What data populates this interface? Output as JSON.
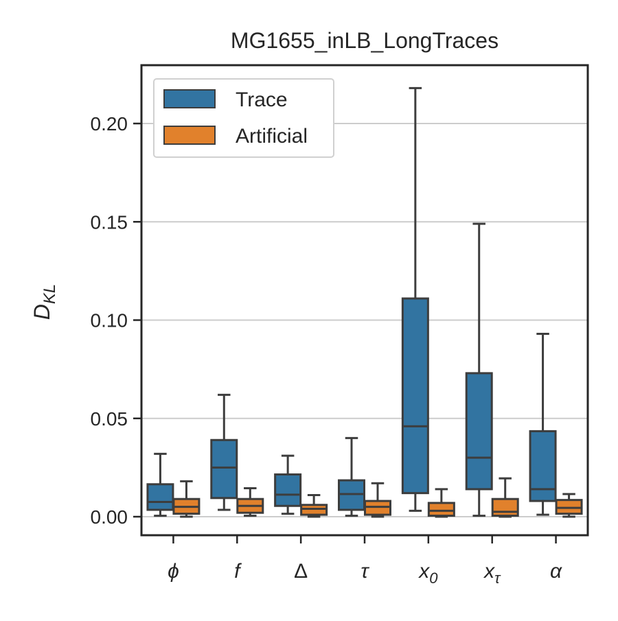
{
  "chart_data": {
    "type": "box",
    "title": "MG1655_inLB_LongTraces",
    "ylabel_main": "D",
    "ylabel_sub": "KL",
    "xlabel": "",
    "ylim": [
      -0.01,
      0.228
    ],
    "yticks": [
      0.0,
      0.05,
      0.1,
      0.15,
      0.2
    ],
    "ytick_labels": [
      "0.00",
      "0.05",
      "0.10",
      "0.15",
      "0.20"
    ],
    "grid": "horizontal",
    "legend_position": "upper-left",
    "categories": [
      {
        "main": "ϕ",
        "sub": "",
        "italic": true
      },
      {
        "main": "f",
        "sub": "",
        "italic": true
      },
      {
        "main": "Δ",
        "sub": "",
        "italic": false
      },
      {
        "main": "τ",
        "sub": "",
        "italic": true
      },
      {
        "main": "x",
        "sub": "0",
        "italic": true
      },
      {
        "main": "x",
        "sub": "τ",
        "italic": true
      },
      {
        "main": "α",
        "sub": "",
        "italic": true
      }
    ],
    "series": [
      {
        "name": "Trace",
        "color": "#3274a1",
        "boxes": [
          {
            "whislo": 0.0005,
            "q1": 0.0035,
            "med": 0.0075,
            "q3": 0.0165,
            "whishi": 0.032
          },
          {
            "whislo": 0.0035,
            "q1": 0.0095,
            "med": 0.025,
            "q3": 0.039,
            "whishi": 0.062
          },
          {
            "whislo": 0.0015,
            "q1": 0.0055,
            "med": 0.0112,
            "q3": 0.0215,
            "whishi": 0.031
          },
          {
            "whislo": 0.0005,
            "q1": 0.0035,
            "med": 0.0115,
            "q3": 0.0185,
            "whishi": 0.04
          },
          {
            "whislo": 0.003,
            "q1": 0.012,
            "med": 0.046,
            "q3": 0.111,
            "whishi": 0.218
          },
          {
            "whislo": 0.0005,
            "q1": 0.014,
            "med": 0.03,
            "q3": 0.073,
            "whishi": 0.149
          },
          {
            "whislo": 0.001,
            "q1": 0.008,
            "med": 0.014,
            "q3": 0.0435,
            "whishi": 0.093
          }
        ]
      },
      {
        "name": "Artificial",
        "color": "#e1812c",
        "boxes": [
          {
            "whislo": 0.0,
            "q1": 0.0015,
            "med": 0.005,
            "q3": 0.009,
            "whishi": 0.018
          },
          {
            "whislo": 0.0005,
            "q1": 0.002,
            "med": 0.0055,
            "q3": 0.009,
            "whishi": 0.0145
          },
          {
            "whislo": 0.0,
            "q1": 0.001,
            "med": 0.004,
            "q3": 0.006,
            "whishi": 0.011
          },
          {
            "whislo": 0.0,
            "q1": 0.001,
            "med": 0.005,
            "q3": 0.008,
            "whishi": 0.017
          },
          {
            "whislo": 0.0,
            "q1": 0.0005,
            "med": 0.003,
            "q3": 0.007,
            "whishi": 0.014
          },
          {
            "whislo": 0.0,
            "q1": 0.0005,
            "med": 0.0025,
            "q3": 0.009,
            "whishi": 0.0195
          },
          {
            "whislo": 0.0,
            "q1": 0.0015,
            "med": 0.0045,
            "q3": 0.0085,
            "whishi": 0.0115
          }
        ]
      }
    ],
    "colors": {
      "axis": "#262626",
      "grid": "#cccccc",
      "box_edge": "#3d3d3d"
    }
  }
}
